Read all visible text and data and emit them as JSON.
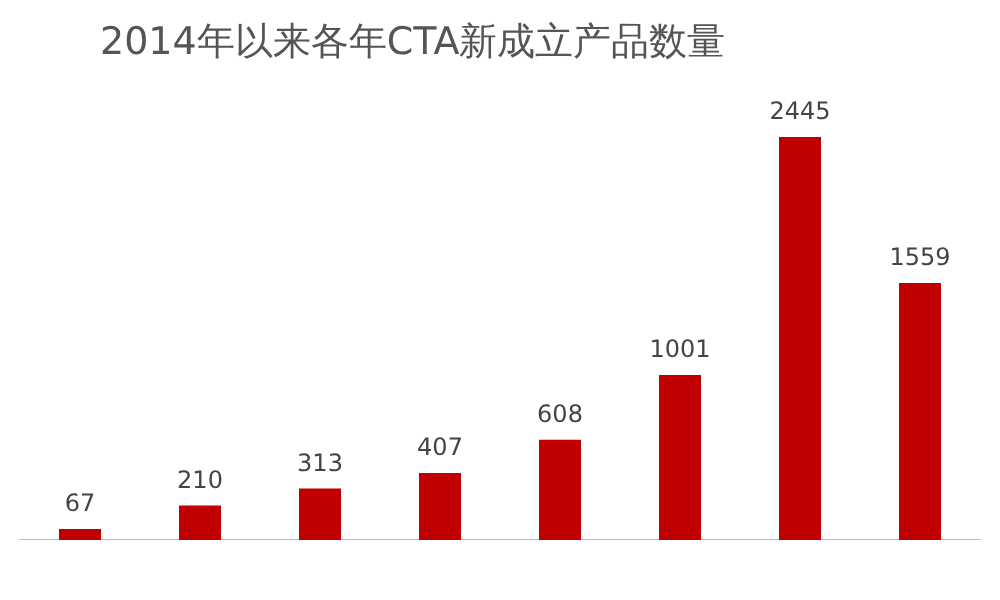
{
  "chart_data": {
    "type": "bar",
    "title": "2014年以来各年CTA新成立产品数量",
    "categories": [
      null,
      null,
      null,
      null,
      null,
      null,
      null,
      null
    ],
    "values": [
      67,
      210,
      313,
      407,
      608,
      1001,
      2445,
      1559
    ],
    "color": "#c00000",
    "data_labels": true,
    "grid": false,
    "legend": false
  }
}
